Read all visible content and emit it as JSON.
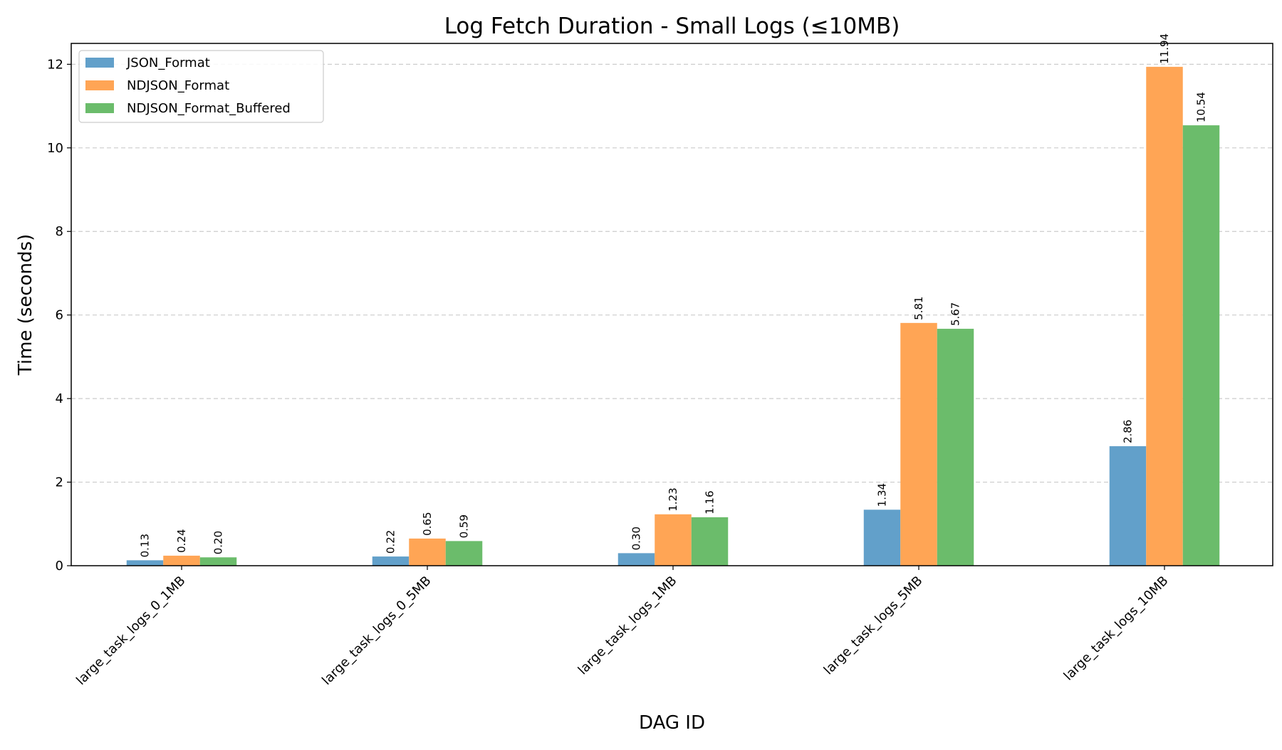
{
  "chart_data": {
    "type": "bar",
    "title": "Log Fetch Duration - Small Logs (≤10MB)",
    "xlabel": "DAG ID",
    "ylabel": "Time (seconds)",
    "ylim": [
      0,
      12.5
    ],
    "yticks": [
      0,
      2,
      4,
      6,
      8,
      10,
      12
    ],
    "grid": "y-dashed",
    "legend_position": "top-left",
    "categories": [
      "large_task_logs_0_1MB",
      "large_task_logs_0_5MB",
      "large_task_logs_1MB",
      "large_task_logs_5MB",
      "large_task_logs_10MB"
    ],
    "series": [
      {
        "name": "JSON_Format",
        "color": "#62a0ca",
        "values": [
          0.13,
          0.22,
          0.3,
          1.34,
          2.86
        ],
        "labels": [
          "0.13",
          "0.22",
          "0.30",
          "1.34",
          "2.86"
        ]
      },
      {
        "name": "NDJSON_Format",
        "color": "#ffa555",
        "values": [
          0.24,
          0.65,
          1.23,
          5.81,
          11.94
        ],
        "labels": [
          "0.24",
          "0.65",
          "1.23",
          "5.81",
          "11.94"
        ]
      },
      {
        "name": "NDJSON_Format_Buffered",
        "color": "#6bbc6b",
        "values": [
          0.2,
          0.59,
          1.16,
          5.67,
          10.54
        ],
        "labels": [
          "0.20",
          "0.59",
          "1.16",
          "5.67",
          "10.54"
        ]
      }
    ]
  }
}
